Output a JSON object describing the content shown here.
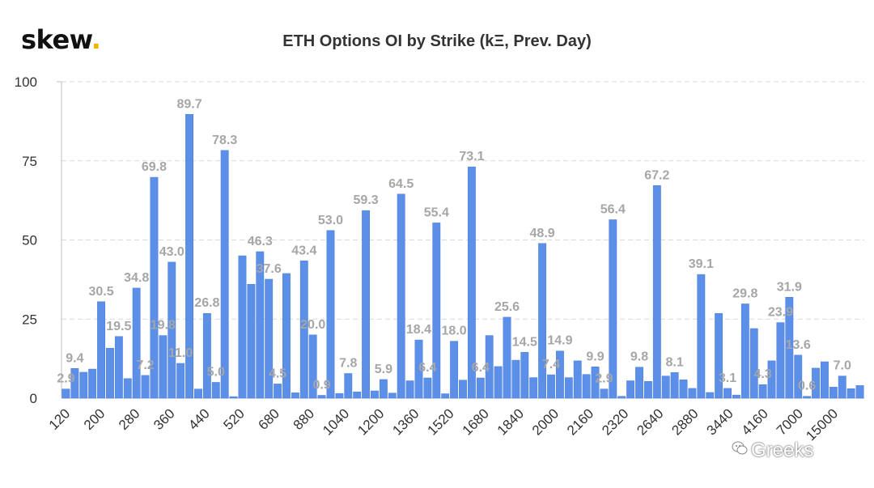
{
  "header": {
    "logo_text": "skew",
    "logo_dot": "."
  },
  "watermark": {
    "text": "Greeks",
    "icon": "wechat-icon"
  },
  "colors": {
    "bar": "#5b8fe8",
    "bar_stroke": "#4a7ed8",
    "label": "#a6a6a6",
    "grid": "#d9d9d9",
    "axis_text": "#333333",
    "logo_accent": "#f0b400"
  },
  "chart_data": {
    "type": "bar",
    "title": "ETH Options OI by Strike (kΞ, Prev. Day)",
    "xlabel": "",
    "ylabel": "",
    "ylim": [
      0,
      100
    ],
    "yticks": [
      0,
      25,
      50,
      75,
      100
    ],
    "grid": true,
    "legend": "none",
    "x_tick_labels": [
      "120",
      "200",
      "280",
      "360",
      "440",
      "520",
      "680",
      "880",
      "1040",
      "1200",
      "1360",
      "1520",
      "1680",
      "1840",
      "2000",
      "2160",
      "2320",
      "2640",
      "2880",
      "3440",
      "4160",
      "7000",
      "15000"
    ],
    "values": [
      2.9,
      9.4,
      8.2,
      9.2,
      30.5,
      15.8,
      19.5,
      6.2,
      34.8,
      7.2,
      69.8,
      19.8,
      43.0,
      11.0,
      89.7,
      2.9,
      26.8,
      5.0,
      78.3,
      0.5,
      45.0,
      36.0,
      46.3,
      37.6,
      4.5,
      39.4,
      1.7,
      43.4,
      20.0,
      0.9,
      53.0,
      1.5,
      7.8,
      2.0,
      59.3,
      2.3,
      5.9,
      1.6,
      64.5,
      5.5,
      18.4,
      6.4,
      55.4,
      1.4,
      18.0,
      5.7,
      73.1,
      6.4,
      19.8,
      10.0,
      25.6,
      12.0,
      14.5,
      6.5,
      48.9,
      7.4,
      14.9,
      6.5,
      11.8,
      7.5,
      9.9,
      2.9,
      56.4,
      0.6,
      5.5,
      9.8,
      5.3,
      67.2,
      7.0,
      8.1,
      5.8,
      3.1,
      39.1,
      1.8,
      26.8,
      3.1,
      1.0,
      29.8,
      22.0,
      4.3,
      11.8,
      23.9,
      31.9,
      13.6,
      0.6,
      9.5,
      11.5,
      3.5,
      7.0,
      3.0,
      4.0
    ],
    "data_labels": [
      {
        "index": 0,
        "text": "2.9"
      },
      {
        "index": 1,
        "text": "9.4"
      },
      {
        "index": 4,
        "text": "30.5"
      },
      {
        "index": 6,
        "text": "19.5"
      },
      {
        "index": 8,
        "text": "34.8"
      },
      {
        "index": 9,
        "text": "7.2"
      },
      {
        "index": 10,
        "text": "69.8"
      },
      {
        "index": 11,
        "text": "19.8"
      },
      {
        "index": 12,
        "text": "43.0"
      },
      {
        "index": 13,
        "text": "11.0"
      },
      {
        "index": 14,
        "text": "89.7"
      },
      {
        "index": 16,
        "text": "26.8"
      },
      {
        "index": 17,
        "text": "5.0"
      },
      {
        "index": 18,
        "text": "78.3"
      },
      {
        "index": 22,
        "text": "46.3"
      },
      {
        "index": 23,
        "text": "37.6"
      },
      {
        "index": 24,
        "text": "4.5"
      },
      {
        "index": 27,
        "text": "43.4"
      },
      {
        "index": 28,
        "text": "20.0"
      },
      {
        "index": 29,
        "text": "0.9"
      },
      {
        "index": 30,
        "text": "53.0"
      },
      {
        "index": 32,
        "text": "7.8"
      },
      {
        "index": 34,
        "text": "59.3"
      },
      {
        "index": 36,
        "text": "5.9"
      },
      {
        "index": 38,
        "text": "64.5"
      },
      {
        "index": 40,
        "text": "18.4"
      },
      {
        "index": 41,
        "text": "6.4"
      },
      {
        "index": 42,
        "text": "55.4"
      },
      {
        "index": 44,
        "text": "18.0"
      },
      {
        "index": 46,
        "text": "73.1"
      },
      {
        "index": 47,
        "text": "6.4"
      },
      {
        "index": 50,
        "text": "25.6"
      },
      {
        "index": 52,
        "text": "14.5"
      },
      {
        "index": 54,
        "text": "48.9"
      },
      {
        "index": 55,
        "text": "7.4"
      },
      {
        "index": 56,
        "text": "14.9"
      },
      {
        "index": 60,
        "text": "9.9"
      },
      {
        "index": 61,
        "text": "2.9"
      },
      {
        "index": 62,
        "text": "56.4"
      },
      {
        "index": 65,
        "text": "9.8"
      },
      {
        "index": 67,
        "text": "67.2"
      },
      {
        "index": 69,
        "text": "8.1"
      },
      {
        "index": 72,
        "text": "39.1"
      },
      {
        "index": 75,
        "text": "3.1"
      },
      {
        "index": 77,
        "text": "29.8"
      },
      {
        "index": 79,
        "text": "4.3"
      },
      {
        "index": 81,
        "text": "23.9"
      },
      {
        "index": 82,
        "text": "31.9"
      },
      {
        "index": 83,
        "text": "13.6"
      },
      {
        "index": 84,
        "text": "0.6"
      },
      {
        "index": 88,
        "text": "7.0"
      }
    ]
  }
}
